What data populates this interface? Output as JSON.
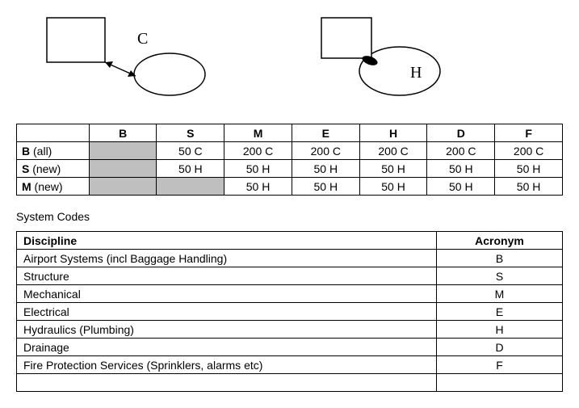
{
  "diagrams": {
    "left_label": "C",
    "right_label": "H",
    "stroke": "#000000",
    "fill": "#ffffff"
  },
  "matrix": {
    "col_headers": [
      "",
      "B",
      "S",
      "M",
      "E",
      "H",
      "D",
      "F"
    ],
    "rows": [
      {
        "label_bold": "B",
        "label_paren": " (all)",
        "cells": [
          "GREY",
          "50 C",
          "200 C",
          "200 C",
          "200 C",
          "200 C",
          "200 C"
        ]
      },
      {
        "label_bold": "S",
        "label_paren": " (new)",
        "cells": [
          "GREY",
          "50 H",
          "50 H",
          "50 H",
          "50 H",
          "50 H",
          "50 H"
        ]
      },
      {
        "label_bold": "M",
        "label_paren": " (new)",
        "cells": [
          "GREY",
          "GREY",
          "50 H",
          "50 H",
          "50 H",
          "50 H",
          "50 H"
        ]
      }
    ]
  },
  "section_title": "System Codes",
  "codes": {
    "headers": {
      "discipline": "Discipline",
      "acronym": "Acronym"
    },
    "rows": [
      {
        "discipline": "Airport Systems (incl Baggage Handling)",
        "acronym": "B"
      },
      {
        "discipline": "Structure",
        "acronym": "S"
      },
      {
        "discipline": "Mechanical",
        "acronym": "M"
      },
      {
        "discipline": "Electrical",
        "acronym": "E"
      },
      {
        "discipline": "Hydraulics (Plumbing)",
        "acronym": "H"
      },
      {
        "discipline": "Drainage",
        "acronym": "D"
      },
      {
        "discipline": "Fire Protection Services (Sprinklers, alarms etc)",
        "acronym": "F"
      },
      {
        "discipline": "",
        "acronym": ""
      }
    ]
  }
}
